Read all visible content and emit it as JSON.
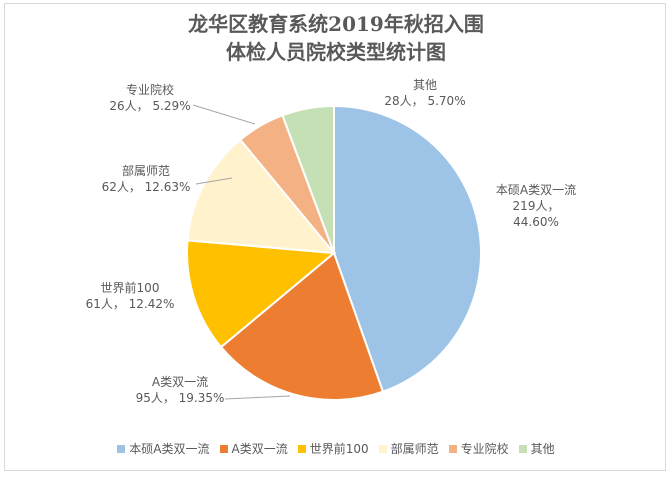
{
  "chart_data": {
    "type": "pie",
    "title_lines": [
      "龙华区教育系统2019年秋招入围",
      "体检人员院校类型统计图"
    ],
    "start_angle_deg": 0,
    "slices": [
      {
        "name": "本硕A类双一流",
        "count_label": "219人，",
        "pct_label": "44.60%",
        "value": 219,
        "percent": 44.6,
        "color": "#9dc3e6"
      },
      {
        "name": "A类双一流",
        "count_label": "95人，",
        "pct_label": "19.35%",
        "value": 95,
        "percent": 19.35,
        "color": "#ed7d31"
      },
      {
        "name": "世界前100",
        "count_label": "61人，",
        "pct_label": "12.42%",
        "value": 61,
        "percent": 12.42,
        "color": "#ffc000"
      },
      {
        "name": "部属师范",
        "count_label": "62人，",
        "pct_label": "12.63%",
        "value": 62,
        "percent": 12.63,
        "color": "#fff2cc"
      },
      {
        "name": "专业院校",
        "count_label": "26人，",
        "pct_label": "5.29%",
        "value": 26,
        "percent": 5.29,
        "color": "#f4b183"
      },
      {
        "name": "其他",
        "count_label": "28人，",
        "pct_label": "5.70%",
        "value": 28,
        "percent": 5.7,
        "color": "#c5e0b4"
      }
    ],
    "legend_position": "bottom"
  }
}
